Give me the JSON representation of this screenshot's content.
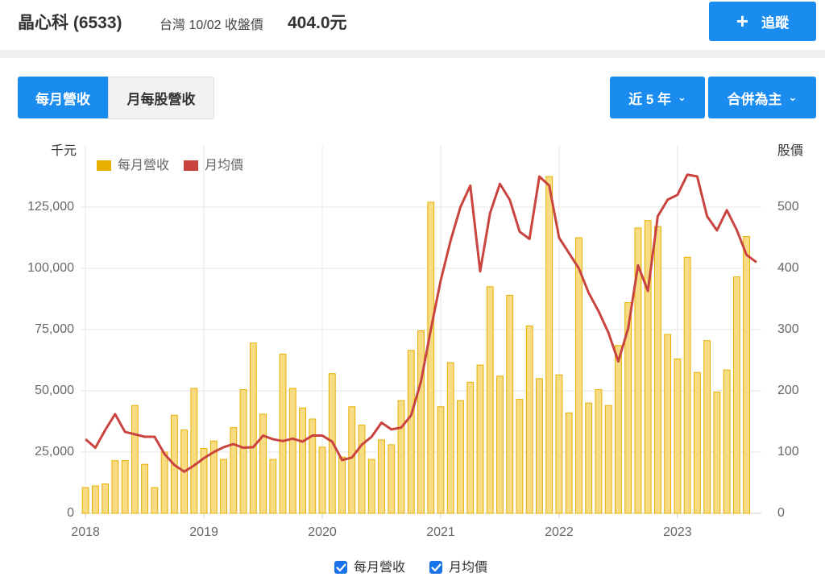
{
  "header": {
    "name": "晶心科 (6533)",
    "market": "台灣 10/02 收盤價",
    "price": "404.0元",
    "follow": "追蹤"
  },
  "tabs": [
    "每月營收",
    "月每股營收"
  ],
  "dropdowns": [
    "近 5 年",
    "合併為主"
  ],
  "chart_data": {
    "type": "bar",
    "ylabel": "千元",
    "y2label": "股價",
    "categories": [
      "2018",
      null,
      null,
      null,
      null,
      null,
      null,
      null,
      null,
      null,
      null,
      null,
      "2019",
      null,
      null,
      null,
      null,
      null,
      null,
      null,
      null,
      null,
      null,
      null,
      "2020",
      null,
      null,
      null,
      null,
      null,
      null,
      null,
      null,
      null,
      null,
      null,
      "2021",
      null,
      null,
      null,
      null,
      null,
      null,
      null,
      null,
      null,
      null,
      null,
      "2022",
      null,
      null,
      null,
      null,
      null,
      null,
      null,
      null,
      null,
      null,
      null,
      "2023",
      null,
      null,
      null,
      null,
      null,
      null,
      null,
      null
    ],
    "series": [
      {
        "name": "每月營收",
        "type": "bar",
        "color": "#e6b000",
        "values": [
          10500,
          11200,
          12000,
          21500,
          21500,
          44000,
          20000,
          10500,
          25000,
          40000,
          34000,
          51000,
          26500,
          29500,
          22000,
          35000,
          50500,
          69500,
          40500,
          22000,
          65000,
          51000,
          43000,
          38500,
          27000,
          57000,
          23000,
          43500,
          36000,
          22000,
          30000,
          28000,
          46000,
          66500,
          74500,
          127000,
          43500,
          61500,
          46000,
          53500,
          60500,
          92500,
          56000,
          89000,
          46500,
          76500,
          55000,
          137500,
          56500,
          41000,
          112500,
          45000,
          50500,
          44000,
          68500,
          86000,
          116500,
          119500,
          117000,
          73000,
          63000,
          104500,
          57500,
          70500,
          49500,
          58500,
          96500,
          113000,
          null
        ]
      },
      {
        "name": "月均價",
        "type": "line",
        "axis": "y2",
        "color": "#c9433f",
        "values": [
          121,
          107,
          136,
          162,
          133,
          129,
          125,
          125,
          97,
          79,
          68,
          78,
          90,
          100,
          108,
          113,
          107,
          108,
          127,
          121,
          118,
          122,
          117,
          127,
          127,
          117,
          87,
          91,
          112,
          125,
          148,
          137,
          140,
          160,
          215,
          300,
          380,
          445,
          500,
          535,
          395,
          490,
          538,
          512,
          460,
          448,
          550,
          535,
          450,
          425,
          400,
          360,
          330,
          295,
          248,
          302,
          405,
          363,
          485,
          512,
          520,
          553,
          550,
          485,
          462,
          495,
          463,
          422,
          410
        ]
      }
    ],
    "ylim": [
      0,
      150000
    ],
    "yticks": [
      0,
      {
        "value": 25000,
        "label": "25,000"
      },
      {
        "value": 50000,
        "label": "50,000"
      },
      {
        "value": 75000,
        "label": "75,000"
      },
      {
        "value": 100000,
        "label": "100,000"
      },
      {
        "value": 125000,
        "label": "125,000"
      }
    ],
    "y2lim": [
      0,
      600
    ],
    "y2ticks": [
      0,
      100,
      200,
      300,
      400,
      500
    ],
    "grid": true
  }
}
